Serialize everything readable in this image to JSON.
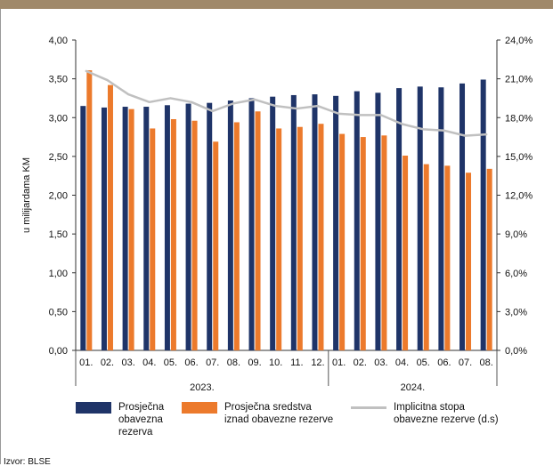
{
  "chart_data": {
    "type": "bar",
    "title": "",
    "ylabel": "u milijardama KM",
    "ylim": [
      0,
      4
    ],
    "y2lim": [
      0,
      24
    ],
    "y_ticks": [
      "0,00",
      "0,50",
      "1,00",
      "1,50",
      "2,00",
      "2,50",
      "3,00",
      "3,50",
      "4,00"
    ],
    "y2_ticks": [
      "0,0%",
      "3,0%",
      "6,0%",
      "9,0%",
      "12,0%",
      "15,0%",
      "18,0%",
      "21,0%",
      "24,0%"
    ],
    "categories": [
      "01.",
      "02.",
      "03.",
      "04.",
      "05.",
      "06.",
      "07.",
      "08.",
      "09.",
      "10.",
      "11.",
      "12.",
      "01.",
      "02.",
      "03.",
      "04.",
      "05.",
      "06.",
      "07.",
      "08."
    ],
    "groups": [
      {
        "label": "2023.",
        "count": 12
      },
      {
        "label": "2024.",
        "count": 8
      }
    ],
    "series": [
      {
        "name": "Prosječna obavezna rezerva",
        "type": "bar",
        "axis": "left",
        "color": "#1f3468",
        "values": [
          3.15,
          3.13,
          3.14,
          3.14,
          3.16,
          3.18,
          3.19,
          3.22,
          3.25,
          3.27,
          3.29,
          3.3,
          3.28,
          3.34,
          3.32,
          3.38,
          3.4,
          3.39,
          3.44,
          3.49
        ]
      },
      {
        "name": "Prosječna sredstva iznad obavezne rezerve",
        "type": "bar",
        "axis": "left",
        "color": "#ec7a2c",
        "values": [
          3.61,
          3.42,
          3.11,
          2.86,
          2.98,
          2.96,
          2.69,
          2.94,
          3.08,
          2.86,
          2.88,
          2.92,
          2.79,
          2.75,
          2.77,
          2.51,
          2.4,
          2.38,
          2.29,
          2.34
        ]
      },
      {
        "name": "Implicitna stopa obavezne rezerve (d.s)",
        "type": "line",
        "axis": "right",
        "color": "#c0c0c0",
        "values": [
          21.6,
          20.9,
          19.8,
          19.2,
          19.5,
          19.2,
          18.5,
          19.1,
          19.4,
          18.9,
          18.7,
          18.9,
          18.3,
          18.2,
          18.2,
          17.5,
          17.1,
          17.0,
          16.6,
          16.7
        ]
      }
    ],
    "legend_position": "bottom",
    "grid": false
  },
  "legend": {
    "obavezna": [
      "Prosječna",
      "obavezna",
      "rezerva"
    ],
    "iznad": [
      "Prosječna sredstva",
      "iznad obavezne rezerve"
    ],
    "stopa": [
      "Implicitna stopa",
      "obavezne rezerve (d.s)"
    ]
  },
  "source": "Izvor: BLSE"
}
